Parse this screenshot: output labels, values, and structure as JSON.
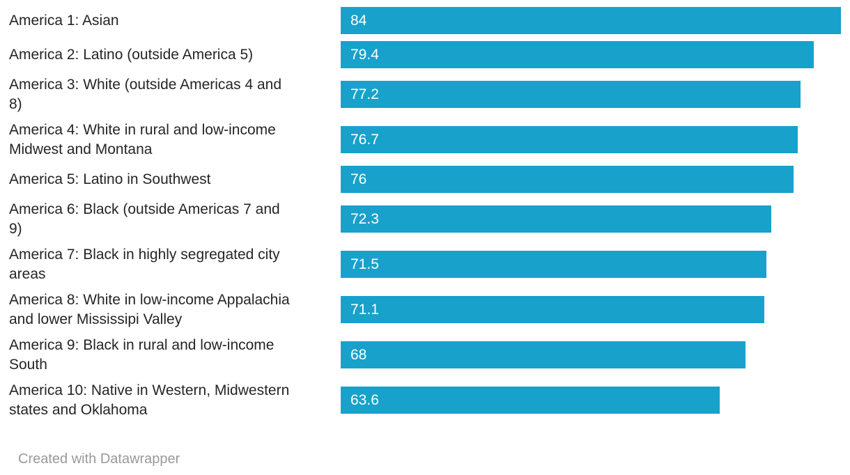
{
  "chart_data": {
    "type": "bar",
    "orientation": "horizontal",
    "title": "",
    "xlabel": "",
    "ylabel": "",
    "xlim": [
      0,
      84
    ],
    "grid": false,
    "legend": false,
    "categories": [
      "America 1: Asian",
      "America 2: Latino (outside America 5)",
      "America 3: White (outside Americas 4 and 8)",
      "America 4: White in rural and low-income Midwest and Montana",
      "America 5: Latino in Southwest",
      "America 6: Black (outside Americas 7 and 9)",
      "America 7: Black in highly segregated city areas",
      "America 8: White in low-income Appalachia and lower Mississipi Valley",
      "America 9: Black in rural and low-income South",
      "America 10: Native in Western, Midwestern states and Oklahoma"
    ],
    "label_lines": [
      [
        "America 1: Asian"
      ],
      [
        "America 2: Latino (outside America 5)"
      ],
      [
        "America 3: White (outside Americas 4 and",
        "8)"
      ],
      [
        "America 4: White in rural and low-income",
        "Midwest and Montana"
      ],
      [
        "America 5: Latino in Southwest"
      ],
      [
        "America 6: Black (outside Americas 7 and",
        "9)"
      ],
      [
        "America 7: Black in highly segregated city",
        "areas"
      ],
      [
        "America 8: White in low-income Appalachia",
        "and lower Mississipi Valley"
      ],
      [
        "America 9: Black in rural and low-income",
        "South"
      ],
      [
        "America 10: Native in Western, Midwestern",
        "states and Oklahoma"
      ]
    ],
    "values": [
      84,
      79.4,
      77.2,
      76.7,
      76,
      72.3,
      71.5,
      71.1,
      68,
      63.6
    ],
    "value_labels": [
      "84",
      "79.4",
      "77.2",
      "76.7",
      "76",
      "72.3",
      "71.5",
      "71.1",
      "68",
      "63.6"
    ],
    "bar_color": "#18a1cb",
    "label_color": "#252525",
    "value_label_color": "#ffffff"
  },
  "footer": {
    "text": "Created with Datawrapper",
    "color": "#999999"
  }
}
